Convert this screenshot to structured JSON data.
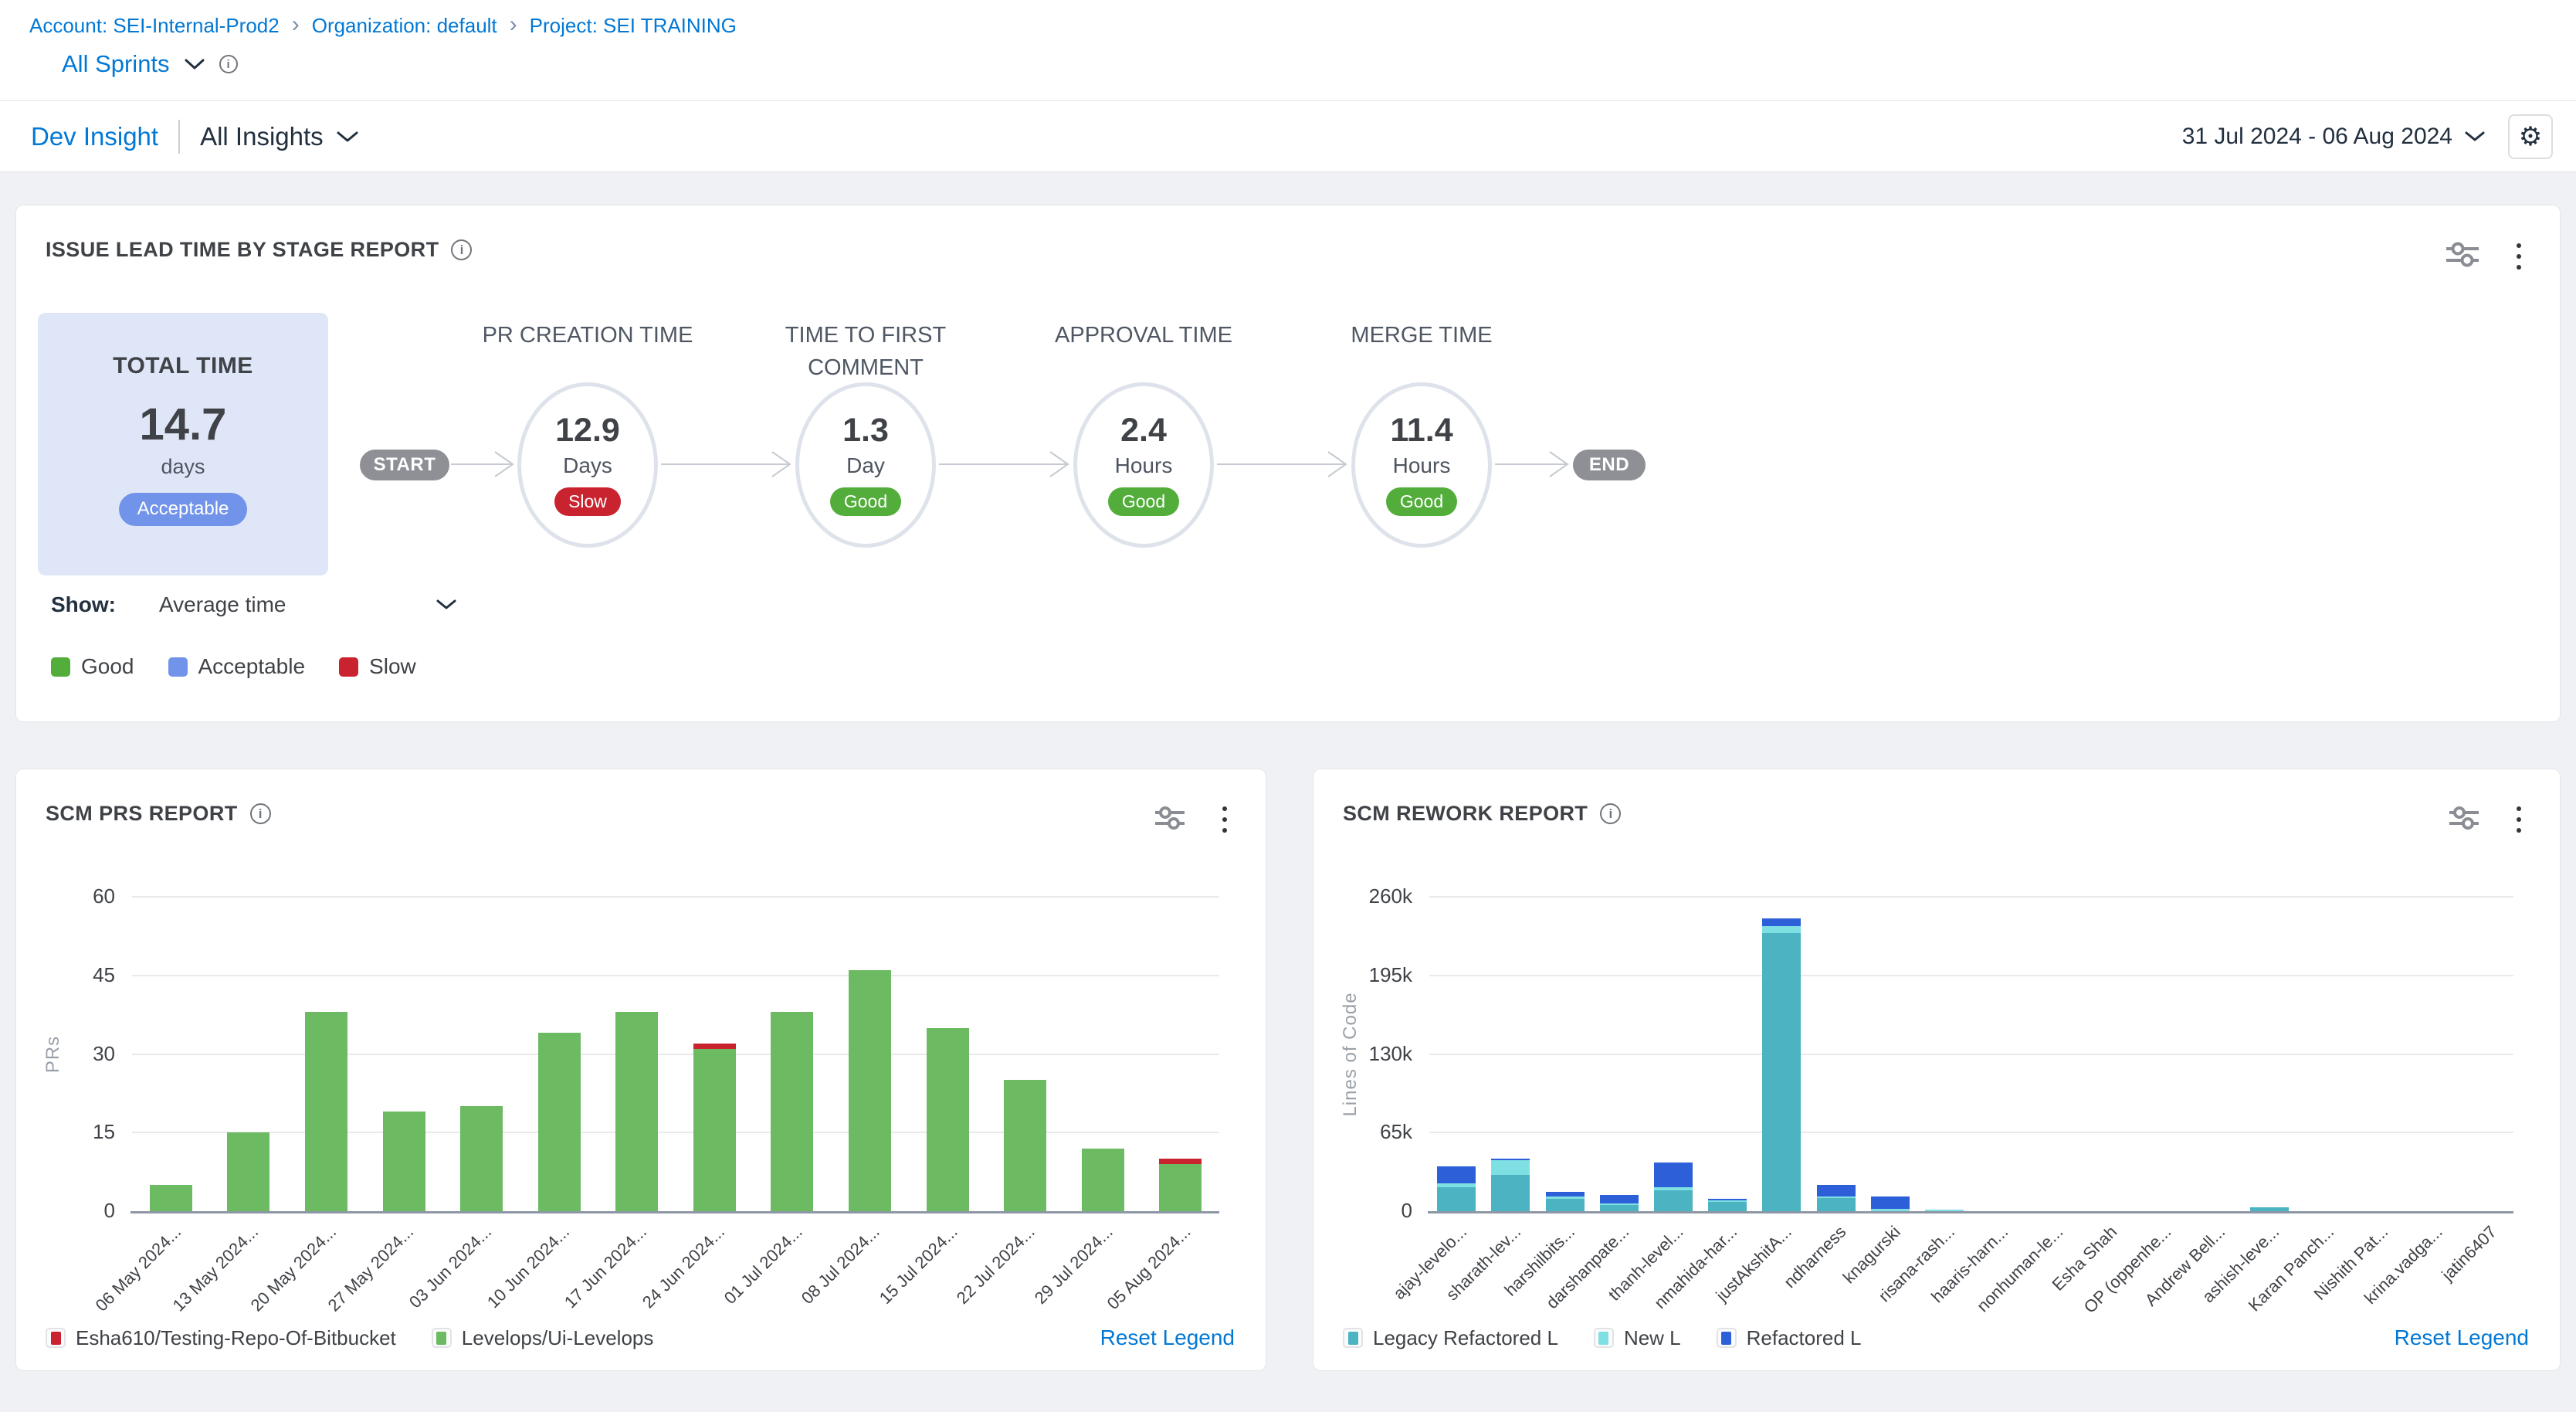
{
  "breadcrumb": {
    "separator": "›",
    "items": [
      "Account: SEI-Internal-Prod2",
      "Organization: default",
      "Project: SEI TRAINING"
    ]
  },
  "sprint_selector": {
    "label": "All Sprints"
  },
  "insight_header": {
    "primary": "Dev Insight",
    "secondary": "All Insights",
    "date_range": "31 Jul 2024 - 06 Aug 2024"
  },
  "icons": {
    "gear": "⚙",
    "info": "i"
  },
  "lead_time": {
    "title": "ISSUE LEAD TIME BY STAGE REPORT",
    "total": {
      "label": "TOTAL TIME",
      "value": "14.7",
      "unit": "days",
      "rating": "Acceptable"
    },
    "start_label": "START",
    "end_label": "END",
    "stages": [
      {
        "name": "PR CREATION TIME",
        "value": "12.9",
        "unit": "Days",
        "rating": "Slow"
      },
      {
        "name": "TIME TO FIRST COMMENT",
        "value": "1.3",
        "unit": "Day",
        "rating": "Good"
      },
      {
        "name": "APPROVAL TIME",
        "value": "2.4",
        "unit": "Hours",
        "rating": "Good"
      },
      {
        "name": "MERGE TIME",
        "value": "11.4",
        "unit": "Hours",
        "rating": "Good"
      }
    ],
    "show": {
      "label": "Show:",
      "value": "Average time"
    },
    "legend": [
      {
        "label": "Good",
        "color": "#53ad3a"
      },
      {
        "label": "Acceptable",
        "color": "#7193ea"
      },
      {
        "label": "Slow",
        "color": "#c9232f"
      }
    ]
  },
  "panels": {
    "prs": {
      "title": "SCM PRS REPORT",
      "reset_legend": "Reset Legend"
    },
    "rework": {
      "title": "SCM REWORK REPORT",
      "reset_legend": "Reset Legend"
    }
  },
  "chart_data": [
    {
      "type": "bar",
      "title": "SCM PRS REPORT",
      "xlabel": "",
      "ylabel": "PRs",
      "ylim": [
        0,
        60
      ],
      "grid": true,
      "legend_position": "bottom",
      "yticks": [
        {
          "value": 0,
          "label": "0"
        },
        {
          "value": 15,
          "label": "15"
        },
        {
          "value": 30,
          "label": "30"
        },
        {
          "value": 45,
          "label": "45"
        },
        {
          "value": 60,
          "label": "60"
        }
      ],
      "categories": [
        "06 May 2024...",
        "13 May 2024...",
        "20 May 2024...",
        "27 May 2024...",
        "03 Jun 2024...",
        "10 Jun 2024...",
        "17 Jun 2024...",
        "24 Jun 2024...",
        "01 Jul 2024...",
        "08 Jul 2024...",
        "15 Jul 2024...",
        "22 Jul 2024...",
        "29 Jul 2024...",
        "05 Aug 2024..."
      ],
      "series": [
        {
          "name": "Esha610/Testing-Repo-Of-Bitbucket",
          "color": "#c9232f",
          "values": [
            0,
            0,
            0,
            0,
            0,
            0,
            0,
            1,
            0,
            0,
            0,
            0,
            0,
            1
          ]
        },
        {
          "name": "Levelops/Ui-Levelops",
          "color": "#6cba62",
          "values": [
            5,
            15,
            38,
            19,
            20,
            34,
            38,
            31,
            38,
            46,
            35,
            25,
            12,
            9
          ]
        }
      ],
      "stack_bottom_to_top": [
        "Levelops/Ui-Levelops",
        "Esha610/Testing-Repo-Of-Bitbucket"
      ]
    },
    {
      "type": "bar",
      "title": "SCM REWORK REPORT",
      "xlabel": "",
      "ylabel": "Lines of Code",
      "ylim": [
        0,
        260000
      ],
      "grid": true,
      "legend_position": "bottom",
      "yticks": [
        {
          "value": 0,
          "label": "0"
        },
        {
          "value": 65000,
          "label": "65k"
        },
        {
          "value": 130000,
          "label": "130k"
        },
        {
          "value": 195000,
          "label": "195k"
        },
        {
          "value": 260000,
          "label": "260k"
        }
      ],
      "categories": [
        "ajay-levelo...",
        "sharath-lev...",
        "harshilbits...",
        "darshanpate...",
        "thanh-level...",
        "nmahida-har...",
        "justAkshitA...",
        "ndharness",
        "knagurski",
        "risana-rash...",
        "haaris-harn...",
        "nonhuman-le...",
        "Esha Shah",
        "OP (oppenhe...",
        "Andrew Bell...",
        "ashish-leve...",
        "Karan Panch...",
        "Nishith Pat...",
        "krina.vadga...",
        "jatin6407"
      ],
      "series": [
        {
          "name": "Legacy Refactored L",
          "color": "#4bb3c1",
          "values": [
            20000,
            30000,
            10000,
            5000,
            17000,
            7500,
            230000,
            11000,
            0,
            0,
            0,
            0,
            0,
            0,
            0,
            3000,
            0,
            0,
            0,
            0
          ]
        },
        {
          "name": "New L",
          "color": "#7fe0e4",
          "values": [
            3000,
            12000,
            2000,
            1000,
            3000,
            1000,
            6000,
            500,
            2000,
            1000,
            0,
            0,
            0,
            0,
            0,
            0,
            0,
            0,
            0,
            0
          ]
        },
        {
          "name": "Refactored L",
          "color": "#2d60d8",
          "values": [
            14000,
            1000,
            4000,
            7000,
            20000,
            1500,
            6000,
            9500,
            10000,
            0,
            0,
            0,
            0,
            0,
            0,
            0,
            0,
            0,
            0,
            0
          ]
        }
      ],
      "stack_bottom_to_top": [
        "Legacy Refactored L",
        "New L",
        "Refactored L"
      ]
    }
  ]
}
